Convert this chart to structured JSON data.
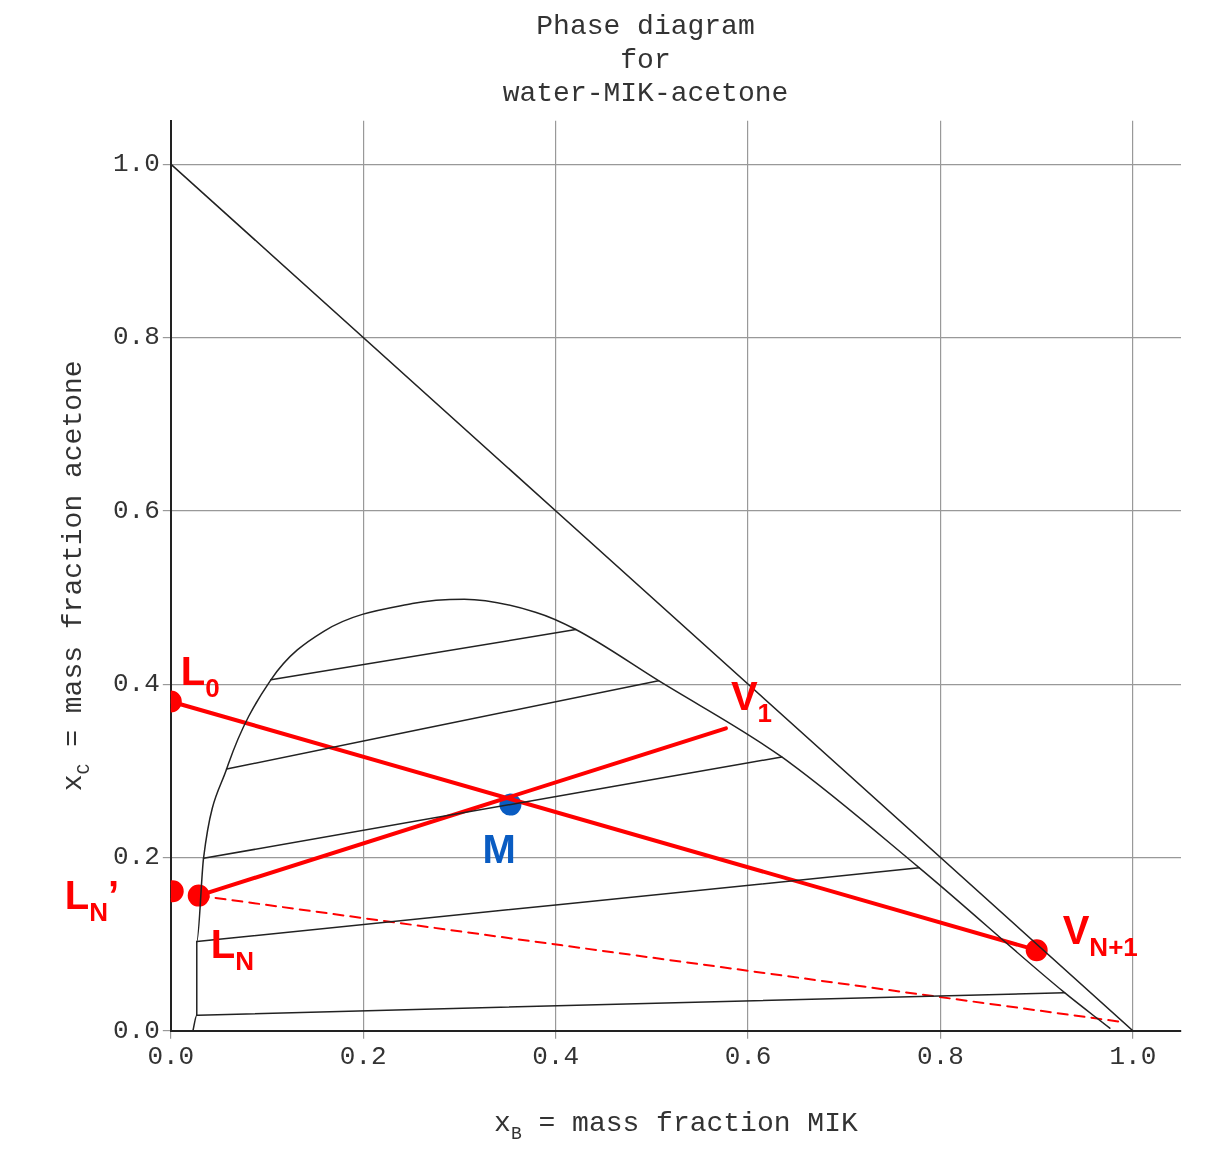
{
  "chart_data": {
    "type": "line",
    "title": "Phase diagram\nfor\nwater-MIK-acetone",
    "xlabel": "x$_{B}$ = mass fraction MIK",
    "ylabel": "x$_{C}$ = mass fraction acetone",
    "xlim": [
      0,
      1.05
    ],
    "ylim": [
      0,
      1.05
    ],
    "xticks": [
      {
        "value": 0,
        "label": "0.0"
      },
      {
        "value": 0.2,
        "label": "0.2"
      },
      {
        "value": 0.4,
        "label": "0.4"
      },
      {
        "value": 0.6,
        "label": "0.6"
      },
      {
        "value": 0.8,
        "label": "0.8"
      },
      {
        "value": 1,
        "label": "1.0"
      }
    ],
    "yticks": [
      {
        "value": 0,
        "label": "0.0"
      },
      {
        "value": 0.2,
        "label": "0.2"
      },
      {
        "value": 0.4,
        "label": "0.4"
      },
      {
        "value": 0.6,
        "label": "0.6"
      },
      {
        "value": 0.8,
        "label": "0.8"
      },
      {
        "value": 1,
        "label": "1.0"
      }
    ],
    "grid": true,
    "legend": false,
    "marker": "none",
    "line_style": "solid",
    "series": [
      {
        "color": "#222222",
        "x": [
          0.023,
          0.027,
          0.027,
          0.034,
          0.058,
          0.104,
          0.159,
          0.251,
          0.305,
          0.379,
          0.421,
          0.507,
          0.635,
          0.778,
          0.929,
          0.976
        ],
        "values": [
          0,
          0.018,
          0.103,
          0.199,
          0.302,
          0.405,
          0.461,
          0.493,
          0.498,
          0.483,
          0.463,
          0.404,
          0.316,
          0.188,
          0.044,
          0.003
        ]
      },
      {
        "color": "#222222",
        "x": [
          0,
          1
        ],
        "values": [
          1,
          0
        ]
      },
      {
        "color": "#222222",
        "x": [
          0.104,
          0.421
        ],
        "values": [
          0.405,
          0.463
        ]
      },
      {
        "color": "#222222",
        "x": [
          0.058,
          0.507
        ],
        "values": [
          0.302,
          0.404
        ]
      },
      {
        "color": "#222222",
        "x": [
          0.034,
          0.635
        ],
        "values": [
          0.199,
          0.316
        ]
      },
      {
        "color": "#222222",
        "x": [
          0.027,
          0.778
        ],
        "values": [
          0.103,
          0.188
        ]
      },
      {
        "color": "#222222",
        "x": [
          0.027,
          0.929
        ],
        "values": [
          0.018,
          0.044
        ]
      },
      {
        "color": "#ff0000",
        "x": [
          0,
          0.9
        ],
        "values": [
          0.38,
          0.093
        ]
      },
      {
        "name": "V$_{1}$",
        "color": "#ff0000",
        "x": [
          0.029,
          0.577
        ],
        "values": [
          0.156,
          0.349
        ]
      },
      {
        "color": "#ff0000",
        "line_style": "dashed",
        "x": [
          0.029,
          0.99
        ],
        "values": [
          0.156,
          0.01
        ]
      },
      {
        "name": "L$_{0}$",
        "type": "scatter",
        "marker": "circle",
        "color": "#ff0000",
        "x": [
          0
        ],
        "values": [
          0.38
        ]
      },
      {
        "name": "V$_{N+1}$",
        "type": "scatter",
        "marker": "circle",
        "color": "#ff0000",
        "x": [
          0.9
        ],
        "values": [
          0.093
        ]
      },
      {
        "name": "L$_{N}$’",
        "type": "scatter",
        "marker": "circle",
        "color": "#ff0000",
        "x": [
          0.002
        ],
        "values": [
          0.161
        ]
      },
      {
        "name": "L$_{N}$",
        "type": "scatter",
        "marker": "circle",
        "color": "#ff0000",
        "x": [
          0.029
        ],
        "values": [
          0.156
        ]
      },
      {
        "name": "M",
        "type": "scatter",
        "marker": "circle",
        "color": "#0a5cc2",
        "x": [
          0.353
        ],
        "values": [
          0.261
        ]
      }
    ]
  }
}
